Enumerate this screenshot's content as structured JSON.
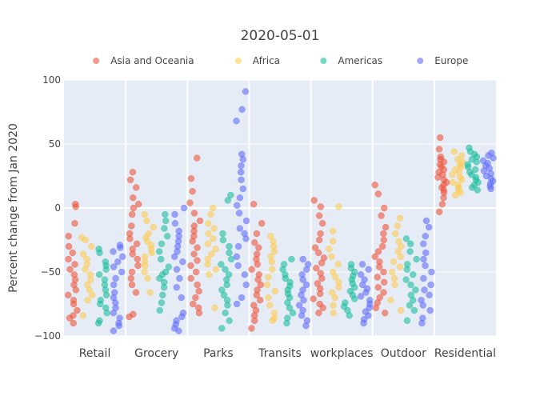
{
  "chart_data": {
    "type": "scatter",
    "title": "2020-05-01",
    "xlabel": "",
    "ylabel": "Percent change from Jan 2020",
    "ylim": [
      -100,
      100
    ],
    "yticks": [
      -100,
      -50,
      0,
      50,
      100
    ],
    "grid": true,
    "legend_position": "top",
    "categories": [
      "Retail",
      "Grocery",
      "Parks",
      "Transits",
      "workplaces",
      "Outdoor",
      "Residential"
    ],
    "series": [
      {
        "name": "Asia and Oceania",
        "color": "#ef553b",
        "values": [
          [
            -90,
            -86,
            -84,
            -80,
            -75,
            -72,
            -68,
            -64,
            -60,
            -56,
            -52,
            -48,
            -44,
            -40,
            -35,
            -30,
            -22,
            -12,
            1,
            3
          ],
          [
            -85,
            -83,
            -66,
            -60,
            -55,
            -50,
            -45,
            -40,
            -36,
            -32,
            -28,
            -24,
            -20,
            -14,
            -5,
            0,
            3,
            8,
            16,
            22,
            28
          ],
          [
            -82,
            -78,
            -75,
            -70,
            -65,
            -60,
            -55,
            -50,
            -45,
            -41,
            -36,
            -31,
            -26,
            -22,
            -18,
            -14,
            -10,
            -4,
            4,
            13,
            23,
            39
          ],
          [
            -94,
            -88,
            -84,
            -80,
            -76,
            -72,
            -68,
            -64,
            -60,
            -56,
            -52,
            -48,
            -44,
            -40,
            -36,
            -31,
            -27,
            -20,
            -12,
            3
          ],
          [
            -82,
            -78,
            -75,
            -71,
            -67,
            -63,
            -59,
            -55,
            -51,
            -47,
            -43,
            -39,
            -35,
            -31,
            -25,
            -20,
            -12,
            -6,
            1,
            6
          ],
          [
            -82,
            -78,
            -74,
            -70,
            -66,
            -62,
            -58,
            -54,
            -50,
            -46,
            -42,
            -38,
            -34,
            -30,
            -25,
            -20,
            -15,
            -6,
            0,
            11,
            18
          ],
          [
            -3,
            3,
            8,
            12,
            14,
            16,
            18,
            20,
            22,
            24,
            26,
            28,
            30,
            32,
            34,
            36,
            38,
            40,
            46,
            55
          ]
        ]
      },
      {
        "name": "Africa",
        "color": "#fecb52",
        "values": [
          [
            -84,
            -72,
            -68,
            -64,
            -60,
            -56,
            -52,
            -48,
            -44,
            -40,
            -36,
            -30,
            -25,
            -23
          ],
          [
            -66,
            -55,
            -50,
            -45,
            -42,
            -38,
            -35,
            -32,
            -29,
            -26,
            -23,
            -20,
            -15,
            -10,
            -5
          ],
          [
            -78,
            -52,
            -48,
            -44,
            -40,
            -36,
            -32,
            -28,
            -24,
            -20,
            -16,
            -12,
            -5,
            0
          ],
          [
            -88,
            -86,
            -82,
            -76,
            -70,
            -65,
            -60,
            -54,
            -48,
            -42,
            -38,
            -34,
            -30,
            -26,
            -22
          ],
          [
            -82,
            -76,
            -70,
            -66,
            -62,
            -58,
            -54,
            -50,
            -44,
            -38,
            -32,
            -26,
            -18,
            1
          ],
          [
            -80,
            -72,
            -60,
            -55,
            -50,
            -46,
            -42,
            -38,
            -34,
            -30,
            -26,
            -20,
            -14,
            -8
          ],
          [
            10,
            12,
            14,
            16,
            18,
            20,
            22,
            24,
            26,
            28,
            30,
            32,
            34,
            36,
            38,
            41,
            44
          ]
        ]
      },
      {
        "name": "Americas",
        "color": "#1cbe9c",
        "values": [
          [
            -90,
            -88,
            -82,
            -78,
            -75,
            -72,
            -68,
            -64,
            -60,
            -56,
            -52,
            -48,
            -45,
            -42,
            -35,
            -32
          ],
          [
            -80,
            -74,
            -68,
            -62,
            -58,
            -55,
            -52,
            -50,
            -46,
            -40,
            -34,
            -28,
            -22,
            -16,
            -10,
            -5
          ],
          [
            -94,
            -88,
            -82,
            -76,
            -72,
            -68,
            -64,
            -60,
            -56,
            -52,
            -48,
            -44,
            -40,
            -35,
            -30,
            -25,
            -20,
            6,
            10
          ],
          [
            -90,
            -86,
            -82,
            -78,
            -74,
            -70,
            -67,
            -64,
            -61,
            -58,
            -55,
            -52,
            -48,
            -44,
            -40
          ],
          [
            -84,
            -80,
            -77,
            -74,
            -71,
            -68,
            -65,
            -62,
            -59,
            -56,
            -53,
            -50,
            -47,
            -44
          ],
          [
            -88,
            -80,
            -76,
            -72,
            -68,
            -64,
            -60,
            -56,
            -52,
            -48,
            -44,
            -40,
            -34,
            -28,
            -24
          ],
          [
            14,
            16,
            18,
            20,
            22,
            24,
            26,
            28,
            30,
            32,
            34,
            36,
            38,
            40,
            42,
            44,
            47
          ]
        ]
      },
      {
        "name": "Europe",
        "color": "#636efa",
        "values": [
          [
            -96,
            -92,
            -90,
            -86,
            -82,
            -78,
            -74,
            -70,
            -66,
            -60,
            -55,
            -50,
            -46,
            -42,
            -38,
            -34,
            -31,
            -29
          ],
          [
            -96,
            -94,
            -91,
            -88,
            -85,
            -82,
            -70,
            -62,
            -55,
            -48,
            -42,
            -38,
            -34,
            -30,
            -26,
            -22,
            -18,
            -12,
            -5,
            0
          ],
          [
            -75,
            -70,
            -60,
            -52,
            -45,
            -38,
            -30,
            -24,
            -20,
            -16,
            -10,
            -4,
            2,
            8,
            15,
            22,
            28,
            33,
            38,
            42,
            68,
            77,
            91
          ],
          [
            -92,
            -88,
            -84,
            -80,
            -76,
            -72,
            -68,
            -64,
            -60,
            -56,
            -52,
            -48,
            -44,
            -40
          ],
          [
            -90,
            -87,
            -84,
            -81,
            -78,
            -75,
            -72,
            -69,
            -66,
            -63,
            -60,
            -56,
            -52,
            -48,
            -44
          ],
          [
            -90,
            -86,
            -80,
            -76,
            -72,
            -68,
            -64,
            -60,
            -55,
            -50,
            -45,
            -40,
            -35,
            -28,
            -22,
            -15,
            -10
          ],
          [
            15,
            17,
            19,
            21,
            23,
            25,
            27,
            29,
            31,
            33,
            35,
            37,
            39,
            41,
            43
          ]
        ]
      }
    ]
  }
}
